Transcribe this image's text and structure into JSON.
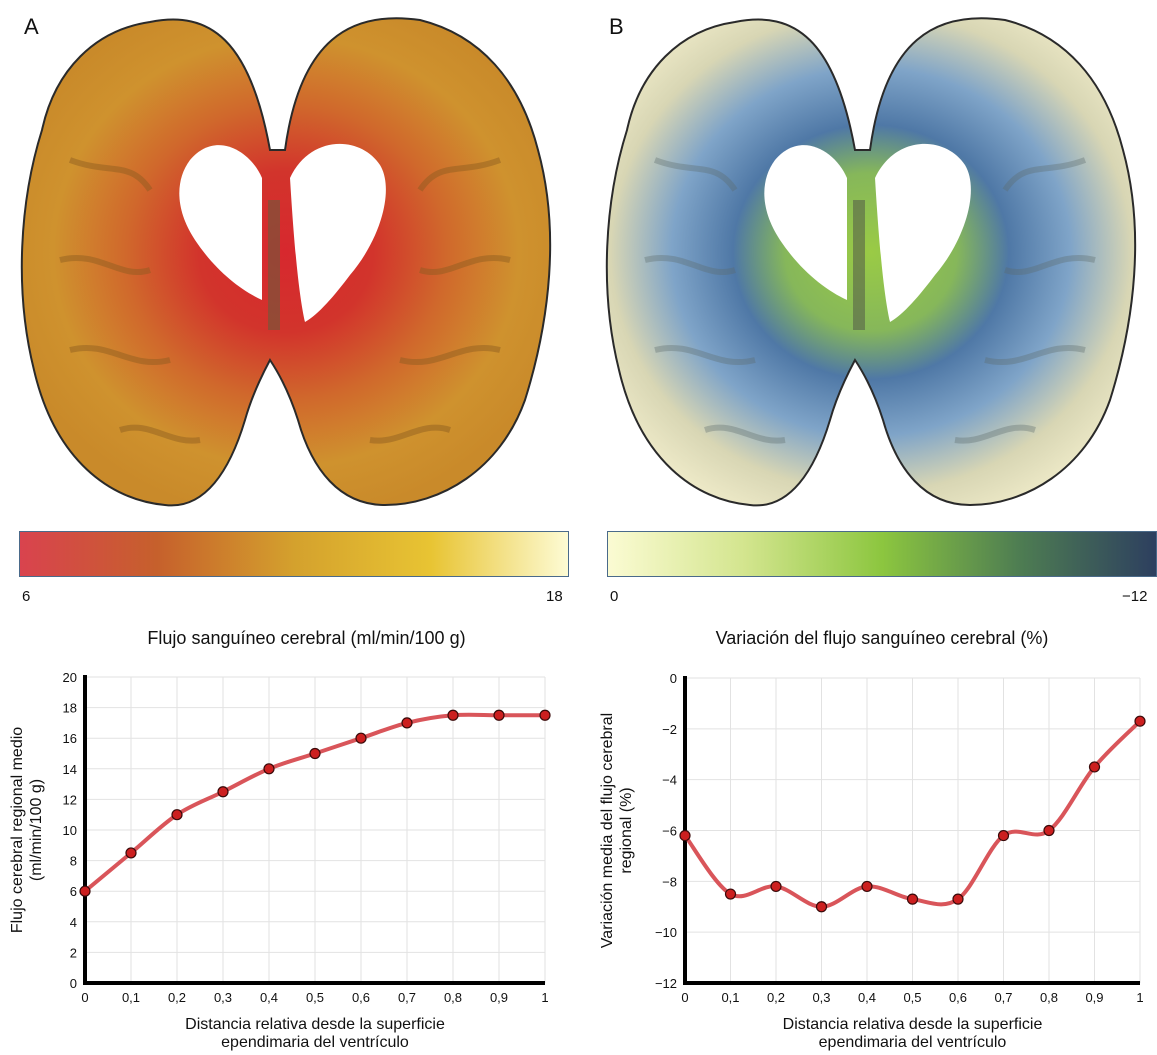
{
  "panels": {
    "a": {
      "letter": "A",
      "colorbar": {
        "min_label": "6",
        "max_label": "18",
        "title": "Flujo sanguíneo cerebral (ml/min/100 g)",
        "stops": [
          "#d9434e",
          "#c6602c",
          "#d4a12d",
          "#e8c433",
          "#fdfbd4"
        ]
      }
    },
    "b": {
      "letter": "B",
      "colorbar": {
        "min_label": "0",
        "max_label": "−12",
        "title": "Variación del flujo sanguíneo cerebral (%)",
        "stops": [
          "#fbfbd3",
          "#d3e58e",
          "#8cc63f",
          "#4e7d52",
          "#2d3f5f"
        ]
      }
    }
  },
  "chart_data": [
    {
      "type": "line",
      "panel": "A",
      "x": [
        0,
        0.1,
        0.2,
        0.3,
        0.4,
        0.5,
        0.6,
        0.7,
        0.8,
        0.9,
        1
      ],
      "x_tick_labels": [
        "0",
        "0,1",
        "0,2",
        "0,3",
        "0,4",
        "0,5",
        "0,6",
        "0,7",
        "0,8",
        "0,9",
        "1"
      ],
      "values": [
        6,
        8.5,
        11,
        12.5,
        14,
        15,
        16,
        17,
        17.5,
        17.5,
        17.5
      ],
      "y_ticks": [
        0,
        2,
        4,
        6,
        8,
        10,
        12,
        14,
        16,
        18,
        20
      ],
      "y_tick_labels": [
        "0",
        "2",
        "4",
        "6",
        "8",
        "10",
        "12",
        "14",
        "16",
        "18",
        "20"
      ],
      "xlim": [
        0,
        1
      ],
      "ylim": [
        0,
        20
      ],
      "xlabel": [
        "Distancia relativa desde la superficie",
        "ependimaria del ventrículo"
      ],
      "ylabel": [
        "Flujo cerebral regional medio",
        "(ml/min/100 g)"
      ],
      "grid": true,
      "line_color": "#d9555a",
      "marker_color": "#cc1f1f"
    },
    {
      "type": "line",
      "panel": "B",
      "x": [
        0,
        0.1,
        0.2,
        0.3,
        0.4,
        0.5,
        0.6,
        0.7,
        0.8,
        0.9,
        1
      ],
      "x_tick_labels": [
        "0",
        "0,1",
        "0,2",
        "0,3",
        "0,4",
        "0,5",
        "0,6",
        "0,7",
        "0,8",
        "0,9",
        "1"
      ],
      "values": [
        -6.2,
        -8.5,
        -8.2,
        -9,
        -8.2,
        -8.7,
        -8.7,
        -6.2,
        -6,
        -3.5,
        -1.7
      ],
      "y_ticks": [
        0,
        -2,
        -4,
        -6,
        -8,
        -10,
        -12
      ],
      "y_tick_labels": [
        "0",
        "−2",
        "−4",
        "−6",
        "−8",
        "−10",
        "−12"
      ],
      "xlim": [
        0,
        1
      ],
      "ylim": [
        -12,
        0
      ],
      "xlabel": [
        "Distancia relativa desde la superficie",
        "ependimaria del ventrículo"
      ],
      "ylabel": [
        "Variación media del flujo cerebral",
        "regional (%)"
      ],
      "grid": true,
      "line_color": "#d9555a",
      "marker_color": "#cc1f1f"
    }
  ]
}
